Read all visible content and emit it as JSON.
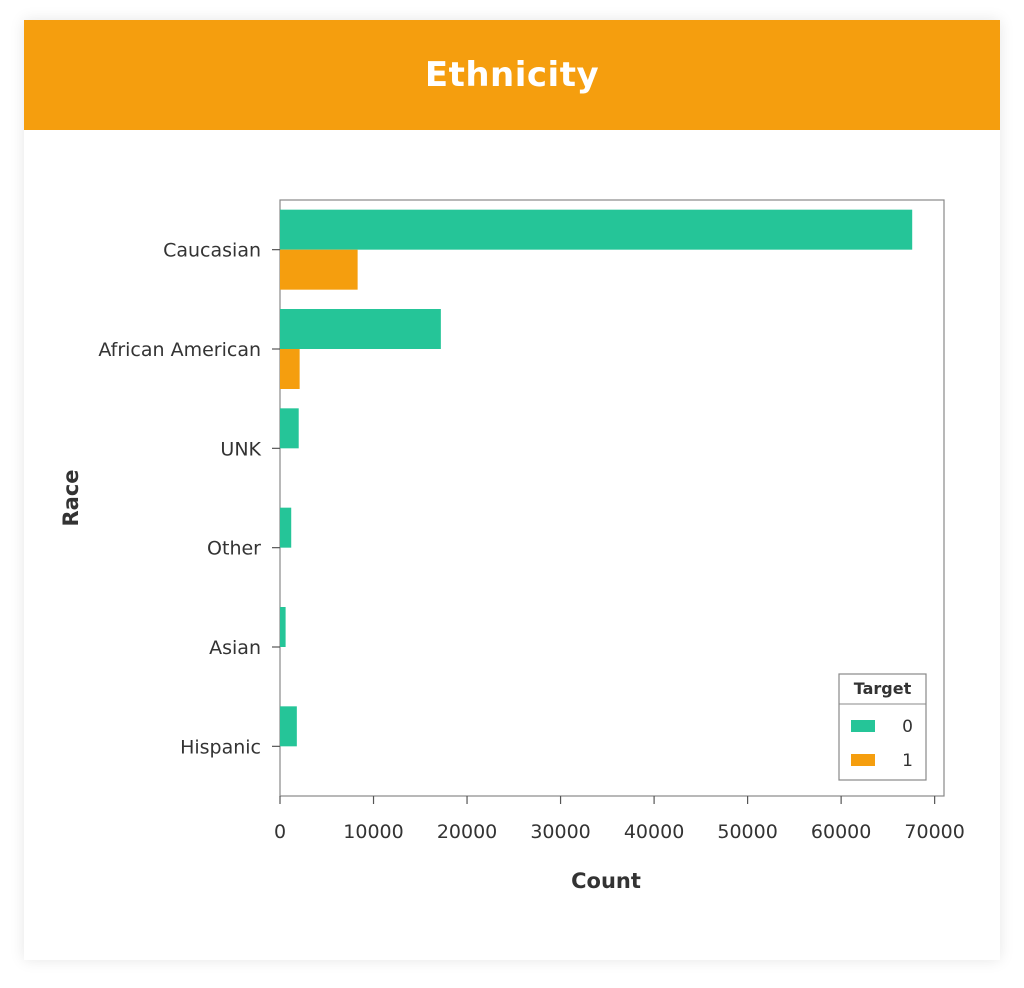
{
  "title": "Ethnicity",
  "colors": {
    "banner": "#F59E0E",
    "series_0": "#25C598",
    "series_1": "#F59E0E"
  },
  "chart_data": {
    "type": "bar",
    "orientation": "horizontal",
    "categories": [
      "Caucasian",
      "African American",
      "UNK",
      "Other",
      "Asian",
      "Hispanic"
    ],
    "series": [
      {
        "name": "0",
        "values": [
          67600,
          17200,
          2000,
          1200,
          600,
          1800
        ]
      },
      {
        "name": "1",
        "values": [
          8300,
          2100,
          0,
          0,
          0,
          0
        ]
      }
    ],
    "xlabel": "Count",
    "ylabel": "Race",
    "xlim": [
      0,
      71000
    ],
    "xticks": [
      0,
      10000,
      20000,
      30000,
      40000,
      50000,
      60000,
      70000
    ],
    "grid": false,
    "legend": {
      "title": "Target",
      "position": "bottom-right"
    }
  }
}
